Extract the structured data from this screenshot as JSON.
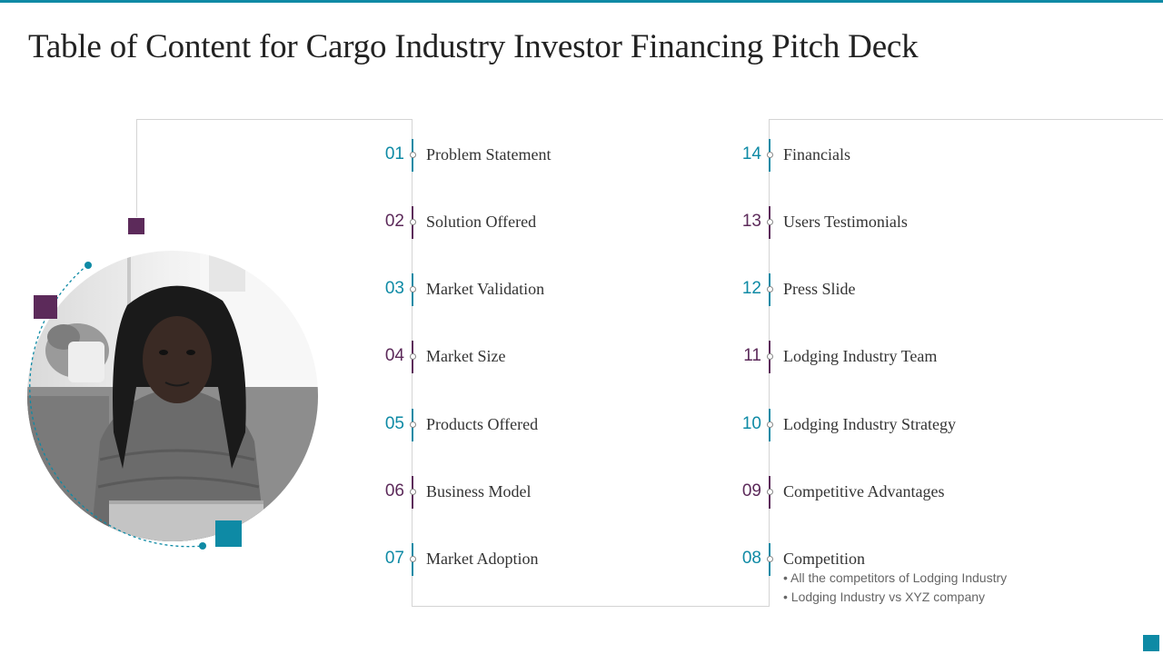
{
  "page": {
    "title": "Table of Content for Cargo Industry Investor Financing Pitch Deck"
  },
  "colors": {
    "teal": "#0e8aa5",
    "purple": "#5c2a5a",
    "text": "#333333"
  },
  "photo": {
    "description_icon": "person-photo"
  },
  "left_column": [
    {
      "num": "01",
      "label": "Problem Statement",
      "color": "teal"
    },
    {
      "num": "02",
      "label": "Solution Offered",
      "color": "purple"
    },
    {
      "num": "03",
      "label": "Market Validation",
      "color": "teal"
    },
    {
      "num": "04",
      "label": "Market Size",
      "color": "purple"
    },
    {
      "num": "05",
      "label": "Products Offered",
      "color": "teal"
    },
    {
      "num": "06",
      "label": "Business Model",
      "color": "purple"
    },
    {
      "num": "07",
      "label": "Market Adoption",
      "color": "teal"
    }
  ],
  "right_column": [
    {
      "num": "14",
      "label": "Financials",
      "color": "teal"
    },
    {
      "num": "13",
      "label": "Users Testimonials",
      "color": "purple"
    },
    {
      "num": "12",
      "label": "Press Slide",
      "color": "teal"
    },
    {
      "num": "11",
      "label": "Lodging Industry Team",
      "color": "purple"
    },
    {
      "num": "10",
      "label": "Lodging Industry Strategy",
      "color": "teal"
    },
    {
      "num": "09",
      "label": "Competitive Advantages",
      "color": "purple"
    },
    {
      "num": "08",
      "label": "Competition",
      "color": "teal"
    }
  ],
  "competition_bullets": [
    "• All the competitors of Lodging Industry",
    "• Lodging Industry vs XYZ company"
  ]
}
